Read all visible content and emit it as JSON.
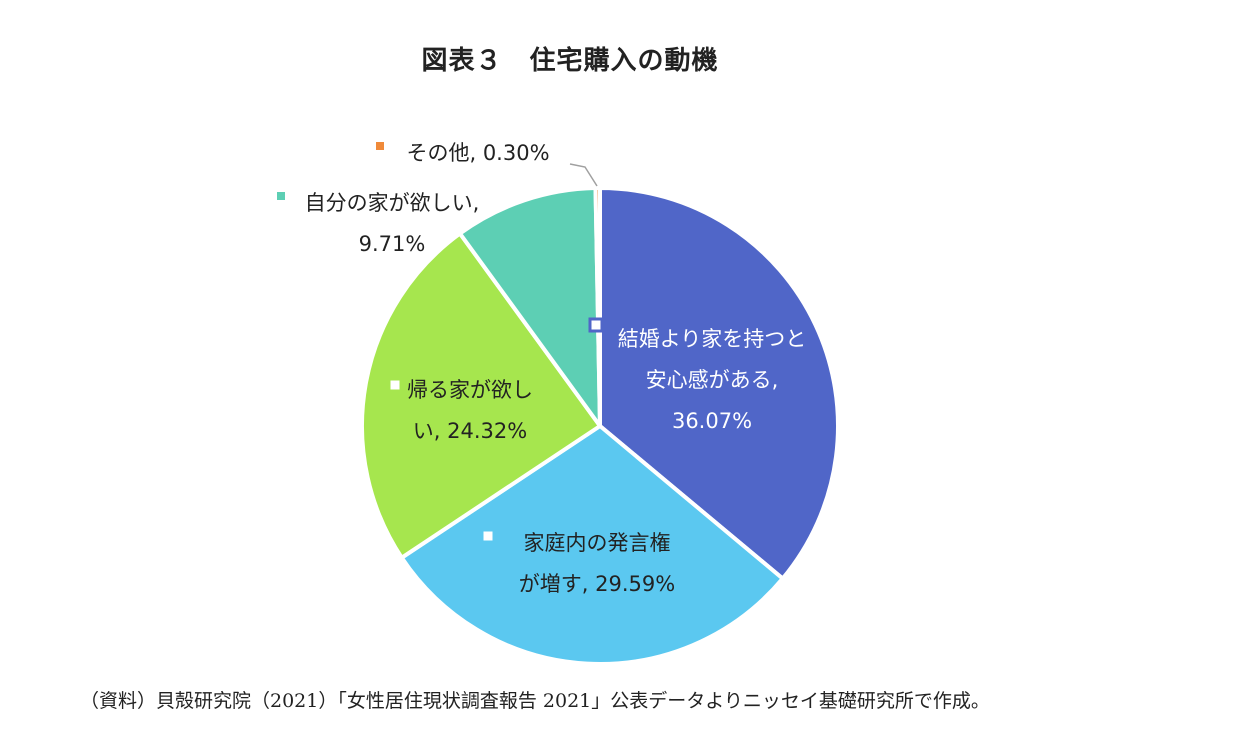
{
  "title": "図表３　住宅購入の動機",
  "source": "（資料）貝殻研究院（2021）「女性居住現状調査報告 2021」公表データよりニッセイ基礎研究所で作成。",
  "chart_data": {
    "type": "pie",
    "title": "図表３　住宅購入の動機",
    "slices": [
      {
        "label_lines": [
          "結婚より家を持つと",
          "安心感がある,",
          "36.07%"
        ],
        "label": "結婚より家を持つと安心感がある",
        "value": 36.07,
        "display": "36.07%",
        "color": "#5066c8"
      },
      {
        "label_lines": [
          "家庭内の発言権",
          "が増す, 29.59%"
        ],
        "label": "家庭内の発言権が増す",
        "value": 29.59,
        "display": "29.59%",
        "color": "#5bc8f0"
      },
      {
        "label_lines": [
          "帰る家が欲し",
          "い, 24.32%"
        ],
        "label": "帰る家が欲しい",
        "value": 24.32,
        "display": "24.32%",
        "color": "#a6e64e"
      },
      {
        "label_lines": [
          "自分の家が欲しい,",
          "9.71%"
        ],
        "label": "自分の家が欲しい",
        "value": 9.71,
        "display": "9.71%",
        "color": "#5dcfb4"
      },
      {
        "label_lines": [
          "その他, 0.30%"
        ],
        "label": "その他",
        "value": 0.3,
        "display": "0.30%",
        "color": "#f08a3a"
      }
    ]
  }
}
